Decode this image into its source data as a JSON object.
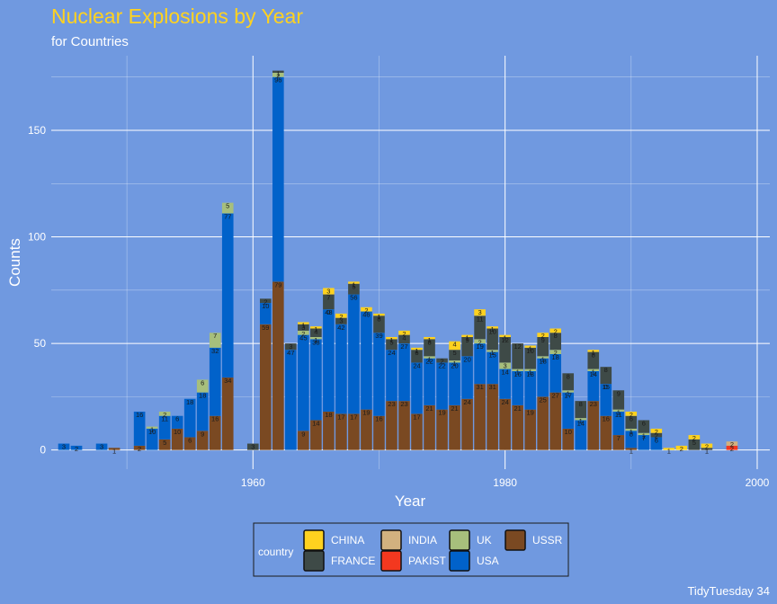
{
  "chart_data": {
    "type": "bar",
    "stacked": true,
    "title": "Nuclear Explosions by Year",
    "subtitle": "for Countries",
    "xlabel": "Year",
    "ylabel": "Counts",
    "caption": "TidyTuesday 34",
    "xlim": [
      1944,
      2001
    ],
    "ylim": [
      -9,
      185
    ],
    "x_ticks": [
      1960,
      1980,
      2000
    ],
    "y_ticks": [
      0,
      50,
      100,
      150
    ],
    "grid": true,
    "legend": {
      "title": "country",
      "position": "bottom",
      "items": [
        {
          "name": "CHINA",
          "color": "#FFD21F"
        },
        {
          "name": "FRANCE",
          "color": "#3E4A47"
        },
        {
          "name": "INDIA",
          "color": "#D2B17F"
        },
        {
          "name": "PAKIST",
          "color": "#F3381F"
        },
        {
          "name": "UK",
          "color": "#A7BF7C"
        },
        {
          "name": "USA",
          "color": "#0162CA"
        },
        {
          "name": "USSR",
          "color": "#7A4922"
        }
      ]
    },
    "stack_order": [
      "USSR",
      "USA",
      "UK",
      "PAKIST",
      "INDIA",
      "FRANCE",
      "CHINA"
    ],
    "series": [
      {
        "name": "USA",
        "color": "#0162CA",
        "values": [
          [
            1945,
            3
          ],
          [
            1946,
            2
          ],
          [
            1948,
            3
          ],
          [
            1951,
            16
          ],
          [
            1952,
            10
          ],
          [
            1953,
            11
          ],
          [
            1954,
            6
          ],
          [
            1955,
            18
          ],
          [
            1956,
            18
          ],
          [
            1957,
            32
          ],
          [
            1958,
            77
          ],
          [
            1961,
            10
          ],
          [
            1962,
            96
          ],
          [
            1963,
            47
          ],
          [
            1964,
            45
          ],
          [
            1965,
            38
          ],
          [
            1966,
            48
          ],
          [
            1967,
            42
          ],
          [
            1968,
            56
          ],
          [
            1969,
            46
          ],
          [
            1970,
            39
          ],
          [
            1971,
            24
          ],
          [
            1972,
            27
          ],
          [
            1973,
            24
          ],
          [
            1974,
            22
          ],
          [
            1975,
            22
          ],
          [
            1976,
            20
          ],
          [
            1977,
            20
          ],
          [
            1978,
            19
          ],
          [
            1979,
            15
          ],
          [
            1980,
            14
          ],
          [
            1981,
            16
          ],
          [
            1982,
            18
          ],
          [
            1983,
            18
          ],
          [
            1984,
            18
          ],
          [
            1985,
            17
          ],
          [
            1986,
            14
          ],
          [
            1987,
            14
          ],
          [
            1988,
            15
          ],
          [
            1989,
            11
          ],
          [
            1990,
            8
          ],
          [
            1991,
            7
          ],
          [
            1992,
            6
          ]
        ]
      },
      {
        "name": "USSR",
        "color": "#7A4922",
        "values": [
          [
            1949,
            1
          ],
          [
            1951,
            2
          ],
          [
            1953,
            5
          ],
          [
            1954,
            10
          ],
          [
            1955,
            6
          ],
          [
            1956,
            9
          ],
          [
            1957,
            16
          ],
          [
            1958,
            34
          ],
          [
            1961,
            59
          ],
          [
            1962,
            79
          ],
          [
            1964,
            9
          ],
          [
            1965,
            14
          ],
          [
            1966,
            18
          ],
          [
            1967,
            17
          ],
          [
            1968,
            17
          ],
          [
            1969,
            19
          ],
          [
            1970,
            16
          ],
          [
            1971,
            23
          ],
          [
            1972,
            23
          ],
          [
            1973,
            17
          ],
          [
            1974,
            21
          ],
          [
            1975,
            19
          ],
          [
            1976,
            21
          ],
          [
            1977,
            24
          ],
          [
            1978,
            31
          ],
          [
            1979,
            31
          ],
          [
            1980,
            24
          ],
          [
            1981,
            21
          ],
          [
            1982,
            19
          ],
          [
            1983,
            25
          ],
          [
            1984,
            27
          ],
          [
            1985,
            10
          ],
          [
            1987,
            23
          ],
          [
            1988,
            16
          ],
          [
            1989,
            7
          ],
          [
            1990,
            1
          ]
        ]
      },
      {
        "name": "UK",
        "color": "#A7BF7C",
        "values": [
          [
            1952,
            1
          ],
          [
            1953,
            2
          ],
          [
            1956,
            6
          ],
          [
            1957,
            7
          ],
          [
            1958,
            5
          ],
          [
            1962,
            2
          ],
          [
            1964,
            2
          ],
          [
            1965,
            1
          ],
          [
            1966,
            0
          ],
          [
            1974,
            1
          ],
          [
            1976,
            1
          ],
          [
            1978,
            2
          ],
          [
            1979,
            1
          ],
          [
            1980,
            3
          ],
          [
            1981,
            1
          ],
          [
            1982,
            1
          ],
          [
            1983,
            1
          ],
          [
            1984,
            2
          ],
          [
            1985,
            1
          ],
          [
            1986,
            1
          ],
          [
            1987,
            1
          ],
          [
            1988,
            0
          ],
          [
            1989,
            1
          ],
          [
            1990,
            1
          ],
          [
            1991,
            1
          ]
        ]
      },
      {
        "name": "FRANCE",
        "color": "#3E4A47",
        "values": [
          [
            1960,
            3
          ],
          [
            1961,
            2
          ],
          [
            1962,
            1
          ],
          [
            1963,
            3
          ],
          [
            1964,
            3
          ],
          [
            1965,
            4
          ],
          [
            1966,
            7
          ],
          [
            1967,
            3
          ],
          [
            1968,
            5
          ],
          [
            1970,
            8
          ],
          [
            1971,
            5
          ],
          [
            1972,
            4
          ],
          [
            1973,
            6
          ],
          [
            1974,
            8
          ],
          [
            1975,
            2
          ],
          [
            1976,
            5
          ],
          [
            1977,
            9
          ],
          [
            1978,
            11
          ],
          [
            1979,
            10
          ],
          [
            1980,
            12
          ],
          [
            1981,
            12
          ],
          [
            1982,
            10
          ],
          [
            1983,
            9
          ],
          [
            1984,
            8
          ],
          [
            1985,
            8
          ],
          [
            1986,
            8
          ],
          [
            1987,
            8
          ],
          [
            1988,
            8
          ],
          [
            1989,
            9
          ],
          [
            1990,
            6
          ],
          [
            1991,
            6
          ],
          [
            1992,
            2
          ],
          [
            1995,
            5
          ],
          [
            1996,
            1
          ]
        ]
      },
      {
        "name": "CHINA",
        "color": "#FFD21F",
        "values": [
          [
            1964,
            1
          ],
          [
            1965,
            1
          ],
          [
            1966,
            3
          ],
          [
            1967,
            2
          ],
          [
            1968,
            1
          ],
          [
            1969,
            2
          ],
          [
            1970,
            1
          ],
          [
            1971,
            1
          ],
          [
            1972,
            2
          ],
          [
            1973,
            1
          ],
          [
            1974,
            1
          ],
          [
            1976,
            4
          ],
          [
            1977,
            1
          ],
          [
            1978,
            3
          ],
          [
            1979,
            1
          ],
          [
            1980,
            1
          ],
          [
            1982,
            1
          ],
          [
            1983,
            2
          ],
          [
            1984,
            2
          ],
          [
            1987,
            1
          ],
          [
            1990,
            2
          ],
          [
            1992,
            2
          ],
          [
            1993,
            1
          ],
          [
            1994,
            2
          ],
          [
            1995,
            2
          ],
          [
            1996,
            2
          ]
        ]
      },
      {
        "name": "INDIA",
        "color": "#D2B17F",
        "values": [
          [
            1998,
            2
          ]
        ]
      },
      {
        "name": "PAKIST",
        "color": "#F3381F",
        "values": [
          [
            1998,
            2
          ]
        ]
      }
    ]
  }
}
